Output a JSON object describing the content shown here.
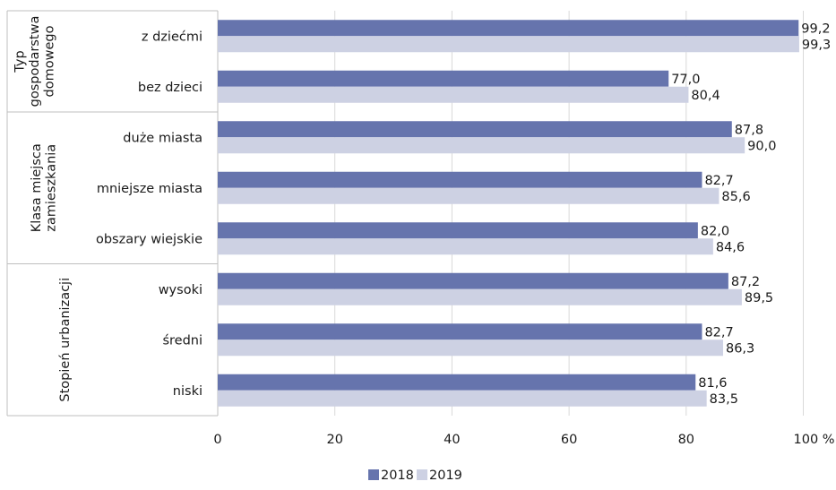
{
  "chart_data": {
    "type": "bar",
    "orientation": "horizontal",
    "groups": [
      {
        "label": "Typ gospodarstwa domowego",
        "label_lines": [
          "Typ",
          "gospodarstwa",
          "domowego"
        ],
        "categories": [
          "z dziećmi",
          "bez dzieci"
        ]
      },
      {
        "label": "Klasa miejsca zamieszkania",
        "label_lines": [
          "Klasa miejsca",
          "zamieszkania"
        ],
        "categories": [
          "duże miasta",
          "mniejsze miasta",
          "obszary wiejskie"
        ]
      },
      {
        "label": "Stopień urbanizacji",
        "label_lines": [
          "Stopień urbanizacji"
        ],
        "categories": [
          "wysoki",
          "średni",
          "niski"
        ]
      }
    ],
    "categories": [
      "z dziećmi",
      "bez dzieci",
      "duże miasta",
      "mniejsze miasta",
      "obszary wiejskie",
      "wysoki",
      "średni",
      "niski"
    ],
    "series": [
      {
        "name": "2018",
        "color": "#6674ad",
        "values": [
          99.2,
          77.0,
          87.8,
          82.7,
          82.0,
          87.2,
          82.7,
          81.6
        ],
        "labels": [
          "99,2",
          "77,0",
          "87,8",
          "82,7",
          "82,0",
          "87,2",
          "82,7",
          "81,6"
        ]
      },
      {
        "name": "2019",
        "color": "#cdd1e3",
        "values": [
          99.3,
          80.4,
          90.0,
          85.6,
          84.6,
          89.5,
          86.3,
          83.5
        ],
        "labels": [
          "99,3",
          "80,4",
          "90,0",
          "85,6",
          "84,6",
          "89,5",
          "86,3",
          "83,5"
        ]
      }
    ],
    "x_ticks": [
      "0",
      "20",
      "40",
      "60",
      "80",
      "100 %"
    ],
    "xlim": [
      0,
      100
    ],
    "grid": true,
    "legend_position": "bottom"
  }
}
